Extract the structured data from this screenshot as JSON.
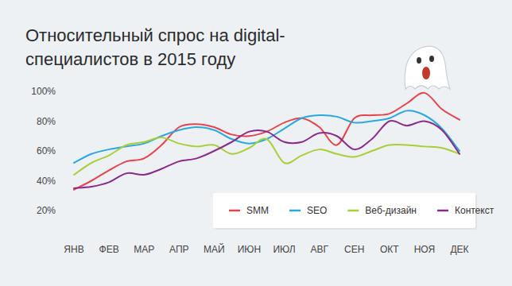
{
  "chart_data": {
    "type": "line",
    "title": "Относительный спрос на digital-специалистов в 2015 году",
    "categories": [
      "ЯНВ",
      null,
      "ФЕВ",
      null,
      "МАР",
      null,
      "АПР",
      null,
      "МАЙ",
      null,
      "ИЮН",
      null,
      "ИЮЛ",
      null,
      "АВГ",
      null,
      "СЕН",
      null,
      "ОКТ",
      null,
      "НОЯ",
      null,
      "ДЕК"
    ],
    "series": [
      {
        "name": "SMM",
        "color": "#e8434a",
        "values": [
          34,
          40,
          47,
          53,
          55,
          64,
          76,
          78,
          76,
          71,
          70,
          73,
          79,
          82,
          76,
          64,
          82,
          84,
          85,
          92,
          99,
          88,
          81
        ]
      },
      {
        "name": "SEO",
        "color": "#29a8e0",
        "values": [
          52,
          58,
          61,
          63,
          65,
          70,
          74,
          76,
          74,
          68,
          65,
          68,
          75,
          82,
          84,
          83,
          79,
          80,
          82,
          87,
          84,
          75,
          60
        ]
      },
      {
        "name": "Веб-дизайн",
        "color": "#a8cf38",
        "values": [
          44,
          52,
          57,
          64,
          66,
          69,
          65,
          63,
          64,
          58,
          62,
          68,
          52,
          57,
          61,
          58,
          56,
          60,
          64,
          64,
          63,
          62,
          58
        ]
      },
      {
        "name": "Контекст",
        "color": "#8b2a8e",
        "values": [
          35,
          36,
          39,
          45,
          44,
          48,
          53,
          55,
          60,
          66,
          73,
          73,
          66,
          66,
          72,
          70,
          61,
          68,
          80,
          77,
          80,
          74,
          58
        ]
      }
    ],
    "ylim": [
      20,
      100
    ],
    "yticks": [
      {
        "value": 20,
        "label": "20%"
      },
      {
        "value": 40,
        "label": "40%"
      },
      {
        "value": 60,
        "label": "60%"
      },
      {
        "value": 80,
        "label": "80%"
      },
      {
        "value": 100,
        "label": "100%"
      }
    ],
    "grid": false,
    "legend": "bottom-right"
  }
}
